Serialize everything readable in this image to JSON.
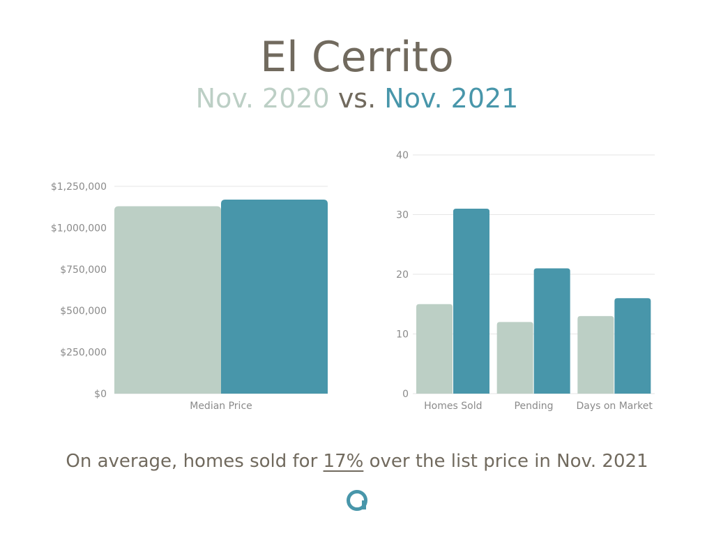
{
  "header": {
    "title": "El Cerrito",
    "period_a": "Nov. 2020",
    "versus": "vs.",
    "period_b": "Nov. 2021"
  },
  "colors": {
    "nov_2020": "#bccfc5",
    "nov_2021": "#4896aa",
    "text": "#716a5e",
    "axis_text": "#8a8a8a",
    "grid": "#e6e6e6"
  },
  "footnote": {
    "prefix": "On average, homes sold for ",
    "highlight": "17%",
    "suffix": " over the list price in Nov. 2021"
  },
  "logo": {
    "icon": "brand-logo-icon"
  },
  "chart_data": [
    {
      "type": "bar",
      "categories": [
        "Median Price"
      ],
      "series": [
        {
          "name": "Nov. 2020",
          "values": [
            1130000
          ]
        },
        {
          "name": "Nov. 2021",
          "values": [
            1170000
          ]
        }
      ],
      "ylim": [
        0,
        1250000
      ],
      "yticks": [
        0,
        250000,
        500000,
        750000,
        1000000,
        1250000
      ],
      "ytick_labels": [
        "$0",
        "$250,000",
        "$500,000",
        "$750,000",
        "$1,000,000",
        "$1,250,000"
      ],
      "grid": true
    },
    {
      "type": "bar",
      "categories": [
        "Homes Sold",
        "Pending",
        "Days on Market"
      ],
      "series": [
        {
          "name": "Nov. 2020",
          "values": [
            15,
            12,
            13
          ]
        },
        {
          "name": "Nov. 2021",
          "values": [
            31,
            21,
            16
          ]
        }
      ],
      "ylim": [
        0,
        40
      ],
      "yticks": [
        0,
        10,
        20,
        30,
        40
      ],
      "ytick_labels": [
        "0",
        "10",
        "20",
        "30",
        "40"
      ],
      "grid": true
    }
  ]
}
